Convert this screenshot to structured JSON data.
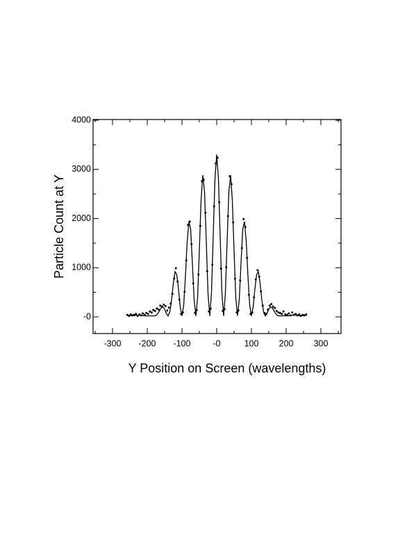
{
  "chart_data": {
    "type": "scatter",
    "xlabel": "Y Position on Screen (wavelengths)",
    "ylabel": "Particle Count at Y",
    "xlim": [
      -356,
      358
    ],
    "ylim": [
      -339,
      4014
    ],
    "xticks": [
      -300,
      -200,
      -100,
      {
        "value": 0,
        "label": "-0"
      },
      100,
      200,
      300
    ],
    "yticks": [
      {
        "value": 0,
        "label": "-0"
      },
      1000,
      2000,
      3000,
      4000
    ],
    "xminor": [
      -350,
      -250,
      -150,
      -50,
      50,
      150,
      250,
      350
    ],
    "yminor": [
      500,
      1500,
      2500,
      3500
    ],
    "series": [
      {
        "style": "line",
        "color": "#000000",
        "x": [
          -260,
          -255,
          -250,
          -245,
          -240,
          -235,
          -230,
          -225,
          -220,
          -215,
          -210,
          -205,
          -200,
          -195,
          -190,
          -185,
          -180,
          -175,
          -170,
          -165,
          -160,
          -155,
          -150,
          -145,
          -140,
          -135,
          -130,
          -125,
          -120,
          -115,
          -110,
          -105,
          -100,
          -95,
          -90,
          -85,
          -80,
          -75,
          -70,
          -65,
          -60,
          -55,
          -50,
          -45,
          -40,
          -35,
          -30,
          -25,
          -20,
          -15,
          -10,
          -5,
          0,
          5,
          10,
          15,
          20,
          25,
          30,
          35,
          40,
          45,
          50,
          55,
          60,
          65,
          70,
          75,
          80,
          85,
          90,
          95,
          100,
          105,
          110,
          115,
          120,
          125,
          130,
          135,
          140,
          145,
          150,
          155,
          160,
          165,
          170,
          175,
          180,
          185,
          190,
          195,
          200,
          205,
          210,
          215,
          220,
          225,
          230,
          235,
          240,
          245,
          250,
          255,
          260
        ],
        "values": [
          32,
          34,
          30,
          24,
          22,
          28,
          34,
          38,
          35,
          30,
          26,
          22,
          20,
          21,
          23,
          22,
          20,
          28,
          62,
          122,
          183,
          204,
          158,
          70,
          20,
          100,
          340,
          680,
          920,
          860,
          570,
          200,
          20,
          240,
          830,
          1540,
          1940,
          1780,
          1088,
          352,
          20,
          390,
          1344,
          2375,
          2882,
          2543,
          1541,
          476,
          20,
          491,
          1646,
          2814,
          3300,
          2814,
          1646,
          491,
          20,
          476,
          1541,
          2543,
          2882,
          2375,
          1344,
          390,
          20,
          352,
          1088,
          1780,
          1940,
          1540,
          830,
          240,
          20,
          200,
          570,
          860,
          920,
          680,
          340,
          100,
          20,
          70,
          158,
          204,
          183,
          122,
          62,
          28,
          20,
          22,
          23,
          21,
          20,
          22,
          26,
          30,
          35,
          38,
          34,
          28,
          22,
          24,
          30,
          34,
          32
        ]
      },
      {
        "style": "points",
        "color": "#000000",
        "x": [
          -257.5,
          -252.5,
          -247.5,
          -242.5,
          -237.5,
          -232.5,
          -227.5,
          -222.5,
          -217.5,
          -212.5,
          -207.5,
          -202.5,
          -197.5,
          -192.5,
          -187.5,
          -182.5,
          -177.5,
          -172.5,
          -167.5,
          -162.5,
          -157.5,
          -152.5,
          -147.5,
          -142.5,
          -137.5,
          -132.5,
          -127.5,
          -122.5,
          -117.5,
          -112.5,
          -107.5,
          -102.5,
          -97.5,
          -92.5,
          -87.5,
          -82.5,
          -77.5,
          -72.5,
          -67.5,
          -62.5,
          -57.5,
          -52.5,
          -47.5,
          -42.5,
          -37.5,
          -32.5,
          -27.5,
          -22.5,
          -17.5,
          -12.5,
          -7.5,
          -2.5,
          2.5,
          7.5,
          12.5,
          17.5,
          22.5,
          27.5,
          32.5,
          37.5,
          42.5,
          47.5,
          52.5,
          57.5,
          62.5,
          67.5,
          72.5,
          77.5,
          82.5,
          87.5,
          92.5,
          97.5,
          102.5,
          107.5,
          112.5,
          117.5,
          122.5,
          127.5,
          132.5,
          137.5,
          142.5,
          147.5,
          152.5,
          157.5,
          162.5,
          167.5,
          172.5,
          177.5,
          182.5,
          187.5,
          192.5,
          197.5,
          202.5,
          207.5,
          212.5,
          217.5,
          222.5,
          227.5,
          232.5,
          237.5,
          242.5,
          247.5,
          252.5,
          257.5
        ],
        "values": [
          40,
          20,
          50,
          30,
          40,
          60,
          20,
          50,
          30,
          70,
          40,
          80,
          60,
          110,
          90,
          140,
          120,
          170,
          150,
          230,
          210,
          250,
          220,
          130,
          190,
          270,
          470,
          780,
          990,
          720,
          350,
          60,
          90,
          510,
          1150,
          1870,
          1940,
          1480,
          680,
          80,
          140,
          860,
          1850,
          2760,
          2790,
          2120,
          930,
          110,
          170,
          1060,
          2250,
          3120,
          3240,
          2330,
          980,
          120,
          160,
          1010,
          2050,
          2860,
          2700,
          1920,
          780,
          90,
          130,
          740,
          1400,
          1990,
          1830,
          1200,
          450,
          60,
          90,
          400,
          760,
          950,
          820,
          520,
          230,
          80,
          60,
          150,
          230,
          260,
          210,
          180,
          120,
          90,
          80,
          60,
          110,
          50,
          40,
          70,
          30,
          90,
          40,
          60,
          30,
          50,
          20,
          40,
          30,
          50
        ]
      }
    ]
  }
}
